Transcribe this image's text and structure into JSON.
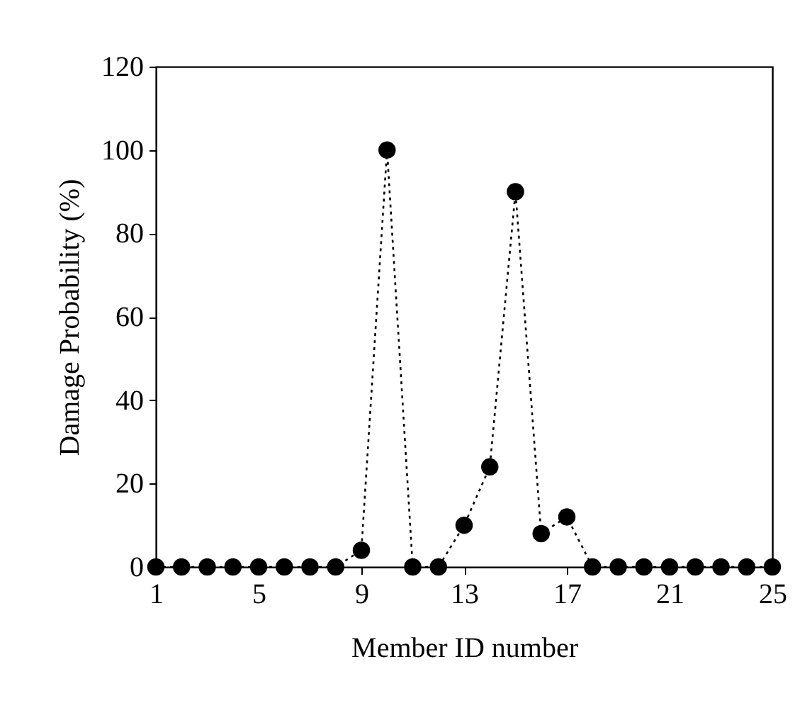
{
  "chart_data": {
    "type": "line",
    "xlabel": "Member ID number",
    "ylabel": "Damage Probability (%)",
    "x": [
      1,
      2,
      3,
      4,
      5,
      6,
      7,
      8,
      9,
      10,
      11,
      12,
      13,
      14,
      15,
      16,
      17,
      18,
      19,
      20,
      21,
      22,
      23,
      24,
      25
    ],
    "series": [
      {
        "color": "#000000",
        "values": [
          0,
          0,
          0,
          0,
          0,
          0,
          0,
          0,
          4,
          100,
          0,
          0,
          10,
          24,
          90,
          8,
          12,
          0,
          0,
          0,
          0,
          0,
          0,
          0,
          0
        ]
      }
    ],
    "xlim": [
      1,
      25
    ],
    "xticks": [
      1,
      5,
      9,
      13,
      17,
      21,
      25
    ],
    "ylim": [
      0,
      120
    ],
    "yticks": [
      0,
      20,
      40,
      60,
      80,
      100,
      120
    ],
    "grid": false,
    "marker": "circle",
    "line_style": "dotted"
  }
}
